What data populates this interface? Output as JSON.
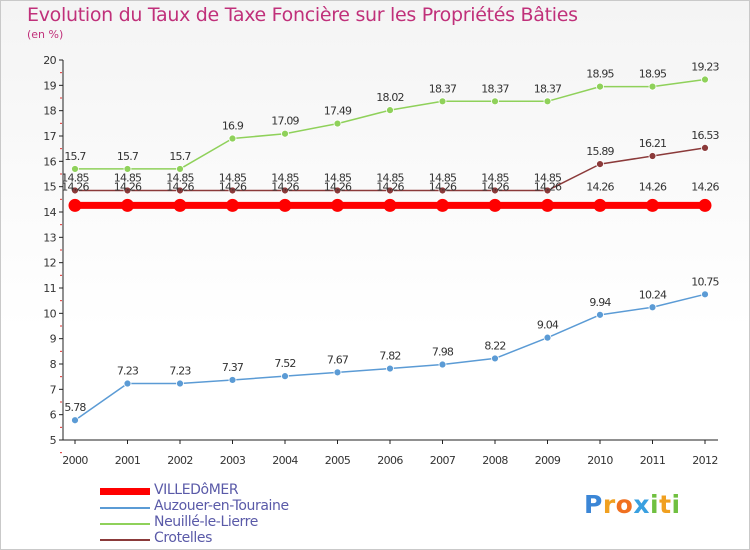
{
  "header": {
    "title": "Evolution du Taux de Taxe Foncière sur les Propriétés Bâties",
    "unit": "(en %)"
  },
  "chart_data": {
    "type": "line",
    "title": "Evolution du Taux de Taxe Foncière sur les Propriétés Bâties",
    "ylabel": "(en %)",
    "xlabel": "",
    "x": [
      "2000",
      "2001",
      "2002",
      "2003",
      "2004",
      "2005",
      "2006",
      "2007",
      "2008",
      "2009",
      "2010",
      "2011",
      "2012"
    ],
    "ylim": [
      5,
      20
    ],
    "yticks": [
      5,
      6,
      7,
      8,
      9,
      10,
      11,
      12,
      13,
      14,
      15,
      16,
      17,
      18,
      19,
      20
    ],
    "grid": false,
    "legend_position": "bottom-left",
    "series": [
      {
        "name": "VILLEDôMER",
        "color": "#ff0000",
        "values": [
          14.26,
          14.26,
          14.26,
          14.26,
          14.26,
          14.26,
          14.26,
          14.26,
          14.26,
          14.26,
          14.26,
          14.26,
          14.26
        ],
        "labels": [
          "14.26",
          "14.26",
          "14.26",
          "14.26",
          "14.26",
          "14.26",
          "14.26",
          "14.26",
          "14.26",
          "14.26",
          "14.26",
          "14.26",
          "14.26"
        ]
      },
      {
        "name": "Auzouer-en-Touraine",
        "color": "#5b9bd5",
        "values": [
          5.78,
          7.23,
          7.23,
          7.37,
          7.52,
          7.67,
          7.82,
          7.98,
          8.22,
          9.04,
          9.94,
          10.24,
          10.75
        ],
        "labels": [
          "5.78",
          "7.23",
          "7.23",
          "7.37",
          "7.52",
          "7.67",
          "7.82",
          "7.98",
          "8.22",
          "9.04",
          "9.94",
          "10.24",
          "10.75"
        ]
      },
      {
        "name": "Neuillé-le-Lierre",
        "color": "#8fd15a",
        "values": [
          15.7,
          15.7,
          15.7,
          16.9,
          17.09,
          17.49,
          18.02,
          18.37,
          18.37,
          18.37,
          18.95,
          18.95,
          19.23
        ],
        "labels": [
          "15.7",
          "15.7",
          "15.7",
          "16.9",
          "17.09",
          "17.49",
          "18.02",
          "18.37",
          "18.37",
          "18.37",
          "18.95",
          "18.95",
          "19.23"
        ]
      },
      {
        "name": "Crotelles",
        "color": "#8b3a3a",
        "values": [
          14.85,
          14.85,
          14.85,
          14.85,
          14.85,
          14.85,
          14.85,
          14.85,
          14.85,
          14.85,
          15.89,
          16.21,
          16.53
        ],
        "labels": [
          "14.85",
          "14.85",
          "14.85",
          "14.85",
          "14.85",
          "14.85",
          "14.85",
          "14.85",
          "14.85",
          "14.85",
          "15.89",
          "16.21",
          "16.53"
        ]
      }
    ]
  },
  "logo": {
    "letters": [
      "P",
      "r",
      "o",
      "x",
      "i",
      "t",
      "i"
    ],
    "colors": [
      "#3b86d6",
      "#f0a020",
      "#f07020",
      "#3aa0e0",
      "#70c040",
      "#f0a020",
      "#70c040"
    ]
  }
}
